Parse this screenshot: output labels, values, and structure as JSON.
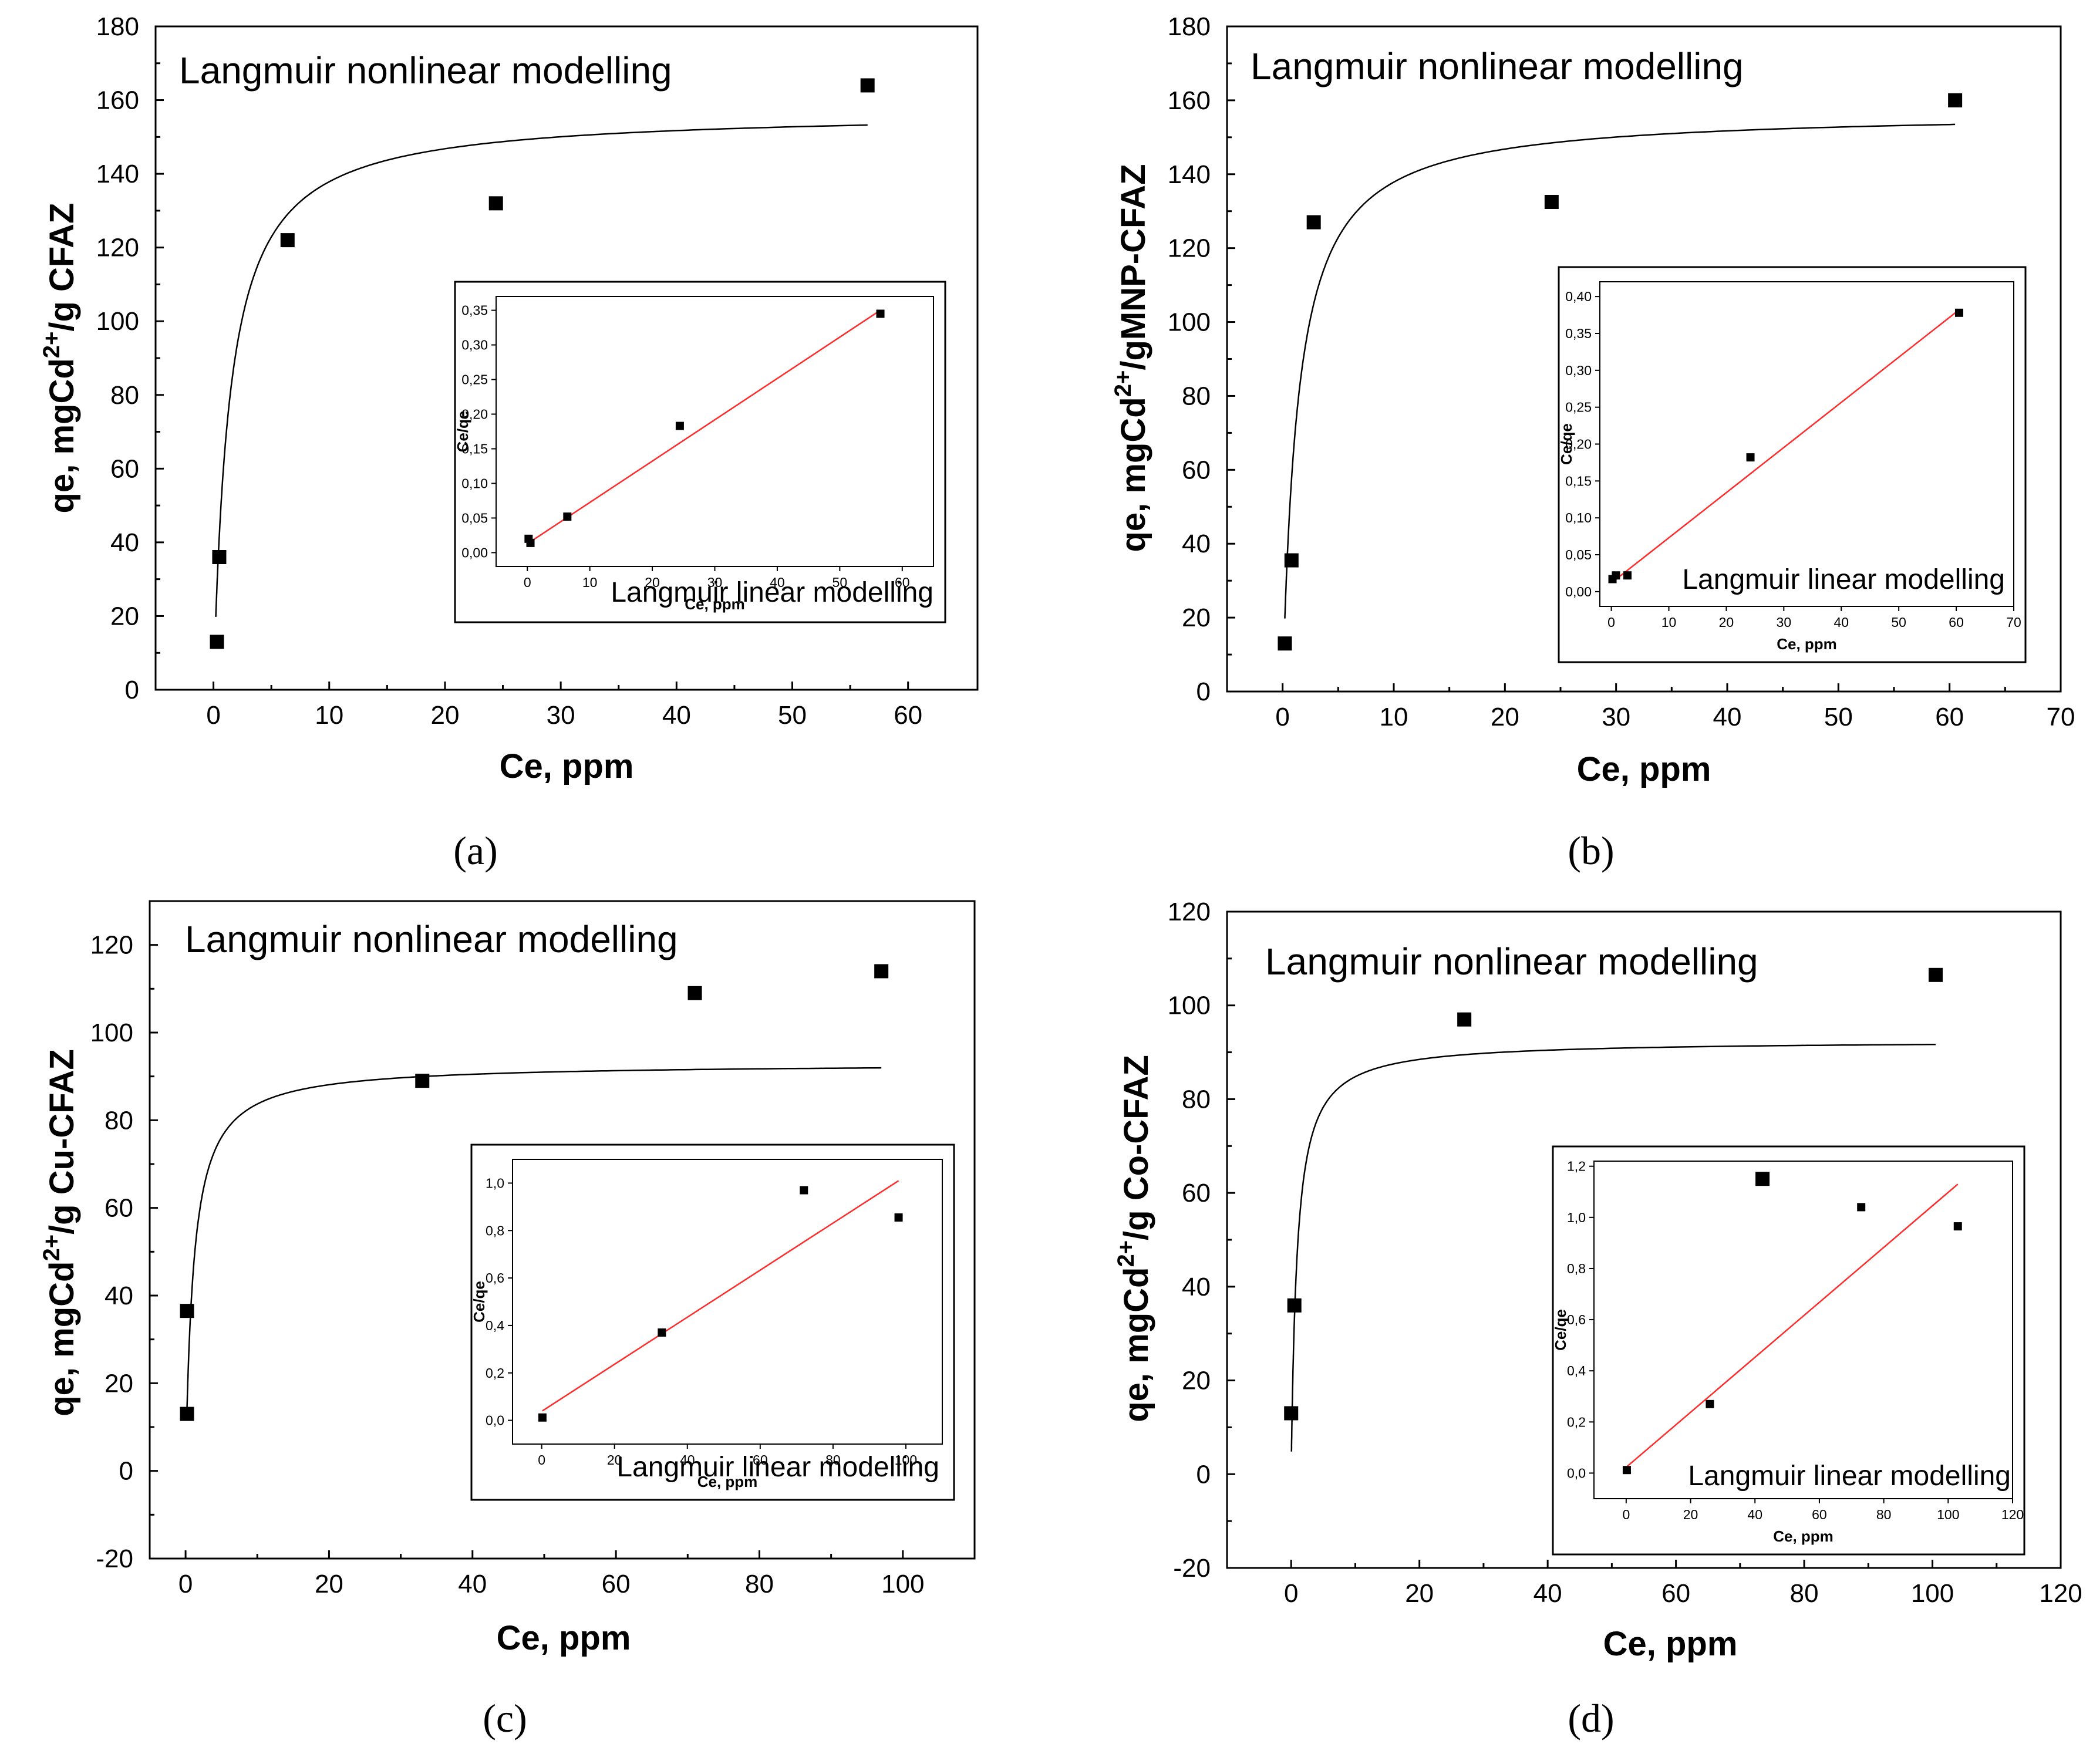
{
  "chart_data": [
    {
      "id": "a",
      "type": "scatter",
      "caption": "(a)",
      "annotation": "Langmuir nonlinear modelling",
      "xlabel": "Ce, ppm",
      "ylabel": {
        "prefix": "qe, mgCd",
        "sup": "2+",
        "suffix": "/g CFAZ"
      },
      "xlim": [
        -5,
        66
      ],
      "ylim": [
        0,
        180
      ],
      "xticks": [
        0,
        10,
        20,
        30,
        40,
        50,
        60
      ],
      "yticks": [
        0,
        20,
        40,
        60,
        80,
        100,
        120,
        140,
        160,
        180
      ],
      "points": [
        [
          0.3,
          13
        ],
        [
          0.5,
          36
        ],
        [
          6.4,
          122
        ],
        [
          24.4,
          132
        ],
        [
          56.5,
          164
        ]
      ],
      "fit": {
        "qmax": 157,
        "KL": 0.72,
        "x_range": [
          0.2,
          56.5
        ]
      },
      "inset": {
        "annotation": "Langmuir linear modelling",
        "xlabel": "Ce, ppm",
        "ylabel": "Ce/qe",
        "xlim": [
          -5,
          65
        ],
        "ylim": [
          -0.02,
          0.37
        ],
        "xticks": [
          0,
          10,
          20,
          30,
          40,
          50,
          60
        ],
        "xtick_labels": [
          "0",
          "10",
          "20",
          "30",
          "40",
          "50",
          "60"
        ],
        "yticks": [
          0,
          0.05,
          0.1,
          0.15,
          0.2,
          0.25,
          0.3,
          0.35
        ],
        "ytick_labels": [
          "0,00",
          "0,05",
          "0,10",
          "0,15",
          "0,20",
          "0,25",
          "0,30",
          "0,35"
        ],
        "points": [
          [
            0.2,
            0.02
          ],
          [
            0.5,
            0.014
          ],
          [
            6.4,
            0.052
          ],
          [
            24.4,
            0.183
          ],
          [
            56.5,
            0.345
          ]
        ],
        "line": [
          [
            0.2,
            0.014
          ],
          [
            56.5,
            0.35
          ]
        ]
      }
    },
    {
      "id": "b",
      "type": "scatter",
      "caption": "(b)",
      "annotation": "Langmuir nonlinear modelling",
      "xlabel": "Ce, ppm",
      "ylabel": {
        "prefix": "qe, mgCd",
        "sup": "2+",
        "suffix": "/gMNP-CFAZ"
      },
      "xlim": [
        -5,
        70
      ],
      "ylim": [
        0,
        180
      ],
      "xticks": [
        0,
        10,
        20,
        30,
        40,
        50,
        60,
        70
      ],
      "yticks": [
        0,
        20,
        40,
        60,
        80,
        100,
        120,
        140,
        160,
        180
      ],
      "points": [
        [
          0.2,
          13
        ],
        [
          0.8,
          35.5
        ],
        [
          2.8,
          127
        ],
        [
          24.2,
          132.5
        ],
        [
          60.5,
          160
        ]
      ],
      "fit": {
        "qmax": 157,
        "KL": 0.72,
        "x_range": [
          0.2,
          60.5
        ]
      },
      "inset": {
        "annotation": "Langmuir linear modelling",
        "xlabel": "Ce, ppm",
        "ylabel": "Ce/qe",
        "xlim": [
          -2,
          70
        ],
        "ylim": [
          -0.02,
          0.42
        ],
        "xticks": [
          0,
          10,
          20,
          30,
          40,
          50,
          60,
          70
        ],
        "xtick_labels": [
          "0",
          "10",
          "20",
          "30",
          "40",
          "50",
          "60",
          "70"
        ],
        "yticks": [
          0,
          0.05,
          0.1,
          0.15,
          0.2,
          0.25,
          0.3,
          0.35,
          0.4
        ],
        "ytick_labels": [
          "0,00",
          "0,05",
          "0,10",
          "0,15",
          "0,20",
          "0,25",
          "0,30",
          "0,35",
          "0,40"
        ],
        "points": [
          [
            0.2,
            0.017
          ],
          [
            0.8,
            0.022
          ],
          [
            2.8,
            0.022
          ],
          [
            24.2,
            0.182
          ],
          [
            60.5,
            0.378
          ]
        ],
        "line": [
          [
            0.2,
            0.013
          ],
          [
            60.5,
            0.382
          ]
        ]
      }
    },
    {
      "id": "c",
      "type": "scatter",
      "caption": "(c)",
      "annotation": "Langmuir nonlinear modelling",
      "xlabel": "Ce, ppm",
      "ylabel": {
        "prefix": "qe, mgCd",
        "sup": "2+",
        "suffix": "/g Cu-CFAZ"
      },
      "xlim": [
        -5,
        110
      ],
      "ylim": [
        -20,
        130
      ],
      "xticks": [
        0,
        20,
        40,
        60,
        80,
        100
      ],
      "yticks": [
        -20,
        0,
        20,
        40,
        60,
        80,
        100,
        120
      ],
      "points": [
        [
          0.2,
          13
        ],
        [
          0.2,
          36.5
        ],
        [
          33,
          89
        ],
        [
          71,
          109
        ],
        [
          97,
          114
        ]
      ],
      "fit": {
        "qmax": 93,
        "KL": 0.9,
        "x_range": [
          0.2,
          97
        ]
      },
      "inset": {
        "annotation": "Langmuir linear modelling",
        "xlabel": "Ce, ppm",
        "ylabel": "Ce/qe",
        "xlim": [
          -8,
          110
        ],
        "ylim": [
          -0.1,
          1.1
        ],
        "xticks": [
          0,
          20,
          40,
          60,
          80,
          100
        ],
        "xtick_labels": [
          "0",
          "20",
          "40",
          "60",
          "80",
          "100"
        ],
        "yticks": [
          0,
          0.2,
          0.4,
          0.6,
          0.8,
          1.0
        ],
        "ytick_labels": [
          "0,0",
          "0,2",
          "0,4",
          "0,6",
          "0,8",
          "1,0"
        ],
        "points": [
          [
            0.2,
            0.012
          ],
          [
            33,
            0.37
          ],
          [
            72,
            0.97
          ],
          [
            98,
            0.855
          ]
        ],
        "line": [
          [
            0.2,
            0.04
          ],
          [
            98,
            1.01
          ]
        ]
      }
    },
    {
      "id": "d",
      "type": "scatter",
      "caption": "(d)",
      "annotation": "Langmuir nonlinear modelling",
      "xlabel": "Ce, ppm",
      "ylabel": {
        "prefix": "qe, mgCd",
        "sup": "2+",
        "suffix": "/g Co-CFAZ"
      },
      "xlim": [
        -10,
        120
      ],
      "ylim": [
        -20,
        120
      ],
      "xticks": [
        0,
        20,
        40,
        60,
        80,
        100,
        120
      ],
      "yticks": [
        -20,
        0,
        20,
        40,
        60,
        80,
        100,
        120
      ],
      "points": [
        [
          0,
          13
        ],
        [
          0.5,
          36
        ],
        [
          27,
          97
        ],
        [
          73.5,
          63
        ],
        [
          100.5,
          106.5
        ]
      ],
      "fit": {
        "qmax": 92.5,
        "KL": 1.1,
        "x_range": [
          0.05,
          100.5
        ]
      },
      "inset": {
        "annotation": "Langmuir linear modelling",
        "xlabel": "Ce, ppm",
        "ylabel": "Ce/qe",
        "xlim": [
          -10,
          120
        ],
        "ylim": [
          -0.1,
          1.22
        ],
        "xticks": [
          0,
          20,
          40,
          60,
          80,
          100,
          120
        ],
        "xtick_labels": [
          "0",
          "20",
          "40",
          "60",
          "80",
          "100",
          "120"
        ],
        "yticks": [
          0,
          0.2,
          0.4,
          0.6,
          0.8,
          1.0,
          1.2
        ],
        "ytick_labels": [
          "0,0",
          "0,2",
          "0,4",
          "0,6",
          "0,8",
          "1,0",
          "1,2"
        ],
        "points": [
          [
            0.2,
            0.012
          ],
          [
            26,
            0.27
          ],
          [
            73,
            1.04
          ],
          [
            103,
            0.965
          ]
        ],
        "line": [
          [
            0.2,
            0.025
          ],
          [
            103,
            1.13
          ]
        ]
      }
    }
  ]
}
